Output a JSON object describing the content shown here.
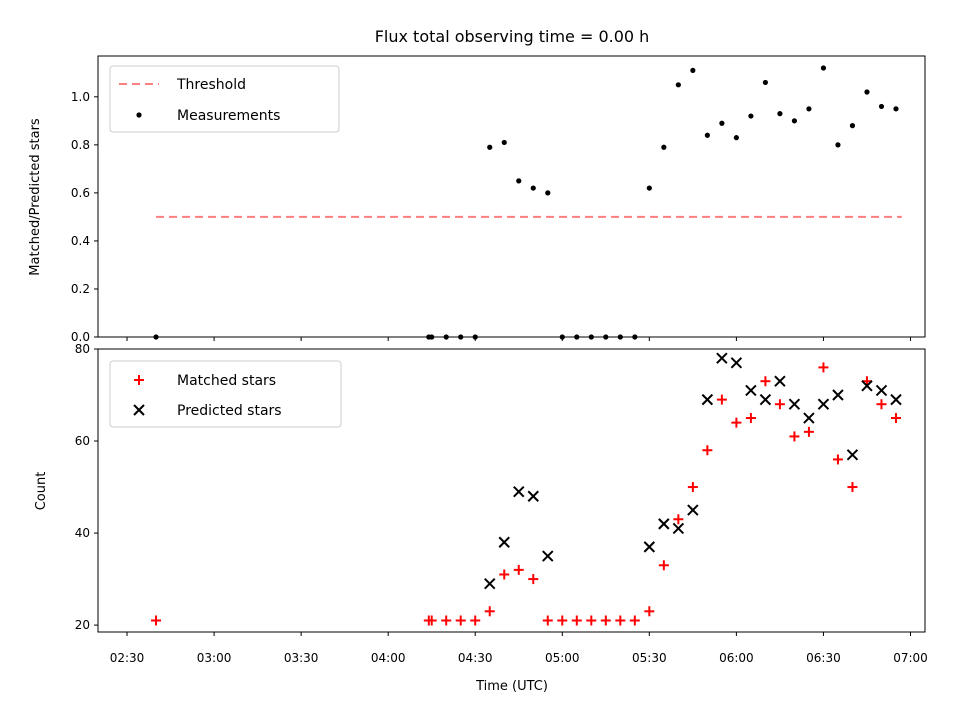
{
  "title": "Flux total observing time = 0.00 h",
  "chart_data": [
    {
      "type": "scatter",
      "panel": "top",
      "ylabel": "Matched/Predicted stars",
      "ylim": [
        0,
        1.17
      ],
      "yticks": [
        0.0,
        0.2,
        0.4,
        0.6,
        0.8,
        1.0
      ],
      "ytick_labels": [
        "0.0",
        "0.2",
        "0.4",
        "0.6",
        "0.8",
        "1.0"
      ],
      "legend_position": "top-left",
      "threshold": {
        "name": "Threshold",
        "value": 0.5,
        "x_start": "02:40",
        "x_end": "06:57",
        "color": "#ff7f7f"
      },
      "measurements": {
        "name": "Measurements",
        "color": "#000000",
        "x": [
          "02:40",
          "04:14",
          "04:15",
          "04:20",
          "04:25",
          "04:30",
          "04:35",
          "04:40",
          "04:45",
          "04:50",
          "04:55",
          "05:00",
          "05:05",
          "05:10",
          "05:15",
          "05:20",
          "05:25",
          "05:30",
          "05:35",
          "05:40",
          "05:45",
          "05:50",
          "05:55",
          "06:00",
          "06:05",
          "06:10",
          "06:15",
          "06:20",
          "06:25",
          "06:30",
          "06:35",
          "06:40",
          "06:45",
          "06:50",
          "06:55"
        ],
        "y": [
          0.0,
          0.0,
          0.0,
          0.0,
          0.0,
          0.0,
          0.79,
          0.81,
          0.65,
          0.62,
          0.6,
          0.0,
          0.0,
          0.0,
          0.0,
          0.0,
          0.0,
          0.62,
          0.79,
          1.05,
          1.11,
          0.84,
          0.89,
          0.83,
          0.92,
          1.06,
          0.93,
          0.9,
          0.95,
          1.12,
          0.8,
          0.88,
          1.02,
          0.96,
          0.95
        ]
      }
    },
    {
      "type": "scatter",
      "panel": "bottom",
      "xlabel": "Time (UTC)",
      "ylabel": "Count",
      "xlim": [
        "02:20",
        "07:05"
      ],
      "ylim": [
        18.5,
        80
      ],
      "xtick_labels": [
        "02:30",
        "03:00",
        "03:30",
        "04:00",
        "04:30",
        "05:00",
        "05:30",
        "06:00",
        "06:30",
        "07:00"
      ],
      "yticks": [
        20,
        40,
        60,
        80
      ],
      "ytick_labels": [
        "20",
        "40",
        "60",
        "80"
      ],
      "legend_position": "top-left",
      "series": [
        {
          "name": "Matched stars",
          "marker": "plus",
          "color": "#ff0000",
          "x": [
            "02:40",
            "04:14",
            "04:15",
            "04:20",
            "04:25",
            "04:30",
            "04:35",
            "04:40",
            "04:45",
            "04:50",
            "04:55",
            "05:00",
            "05:05",
            "05:10",
            "05:15",
            "05:20",
            "05:25",
            "05:30",
            "05:35",
            "05:40",
            "05:45",
            "05:50",
            "05:55",
            "06:00",
            "06:05",
            "06:10",
            "06:15",
            "06:20",
            "06:25",
            "06:30",
            "06:35",
            "06:40",
            "06:45",
            "06:50",
            "06:55"
          ],
          "y": [
            21,
            21,
            21,
            21,
            21,
            21,
            23,
            31,
            32,
            30,
            21,
            21,
            21,
            21,
            21,
            21,
            21,
            23,
            33,
            43,
            50,
            58,
            69,
            64,
            65,
            73,
            68,
            61,
            62,
            76,
            56,
            50,
            73,
            68,
            65
          ]
        },
        {
          "name": "Predicted stars",
          "marker": "x",
          "color": "#000000",
          "x": [
            "04:35",
            "04:40",
            "04:45",
            "04:50",
            "04:55",
            "05:30",
            "05:35",
            "05:40",
            "05:45",
            "05:50",
            "05:55",
            "06:00",
            "06:05",
            "06:10",
            "06:15",
            "06:20",
            "06:25",
            "06:30",
            "06:35",
            "06:40",
            "06:45",
            "06:50",
            "06:55"
          ],
          "y": [
            29,
            38,
            49,
            48,
            35,
            37,
            42,
            41,
            45,
            69,
            78,
            77,
            71,
            69,
            73,
            68,
            65,
            68,
            70,
            57,
            72,
            71,
            69
          ]
        }
      ]
    }
  ]
}
